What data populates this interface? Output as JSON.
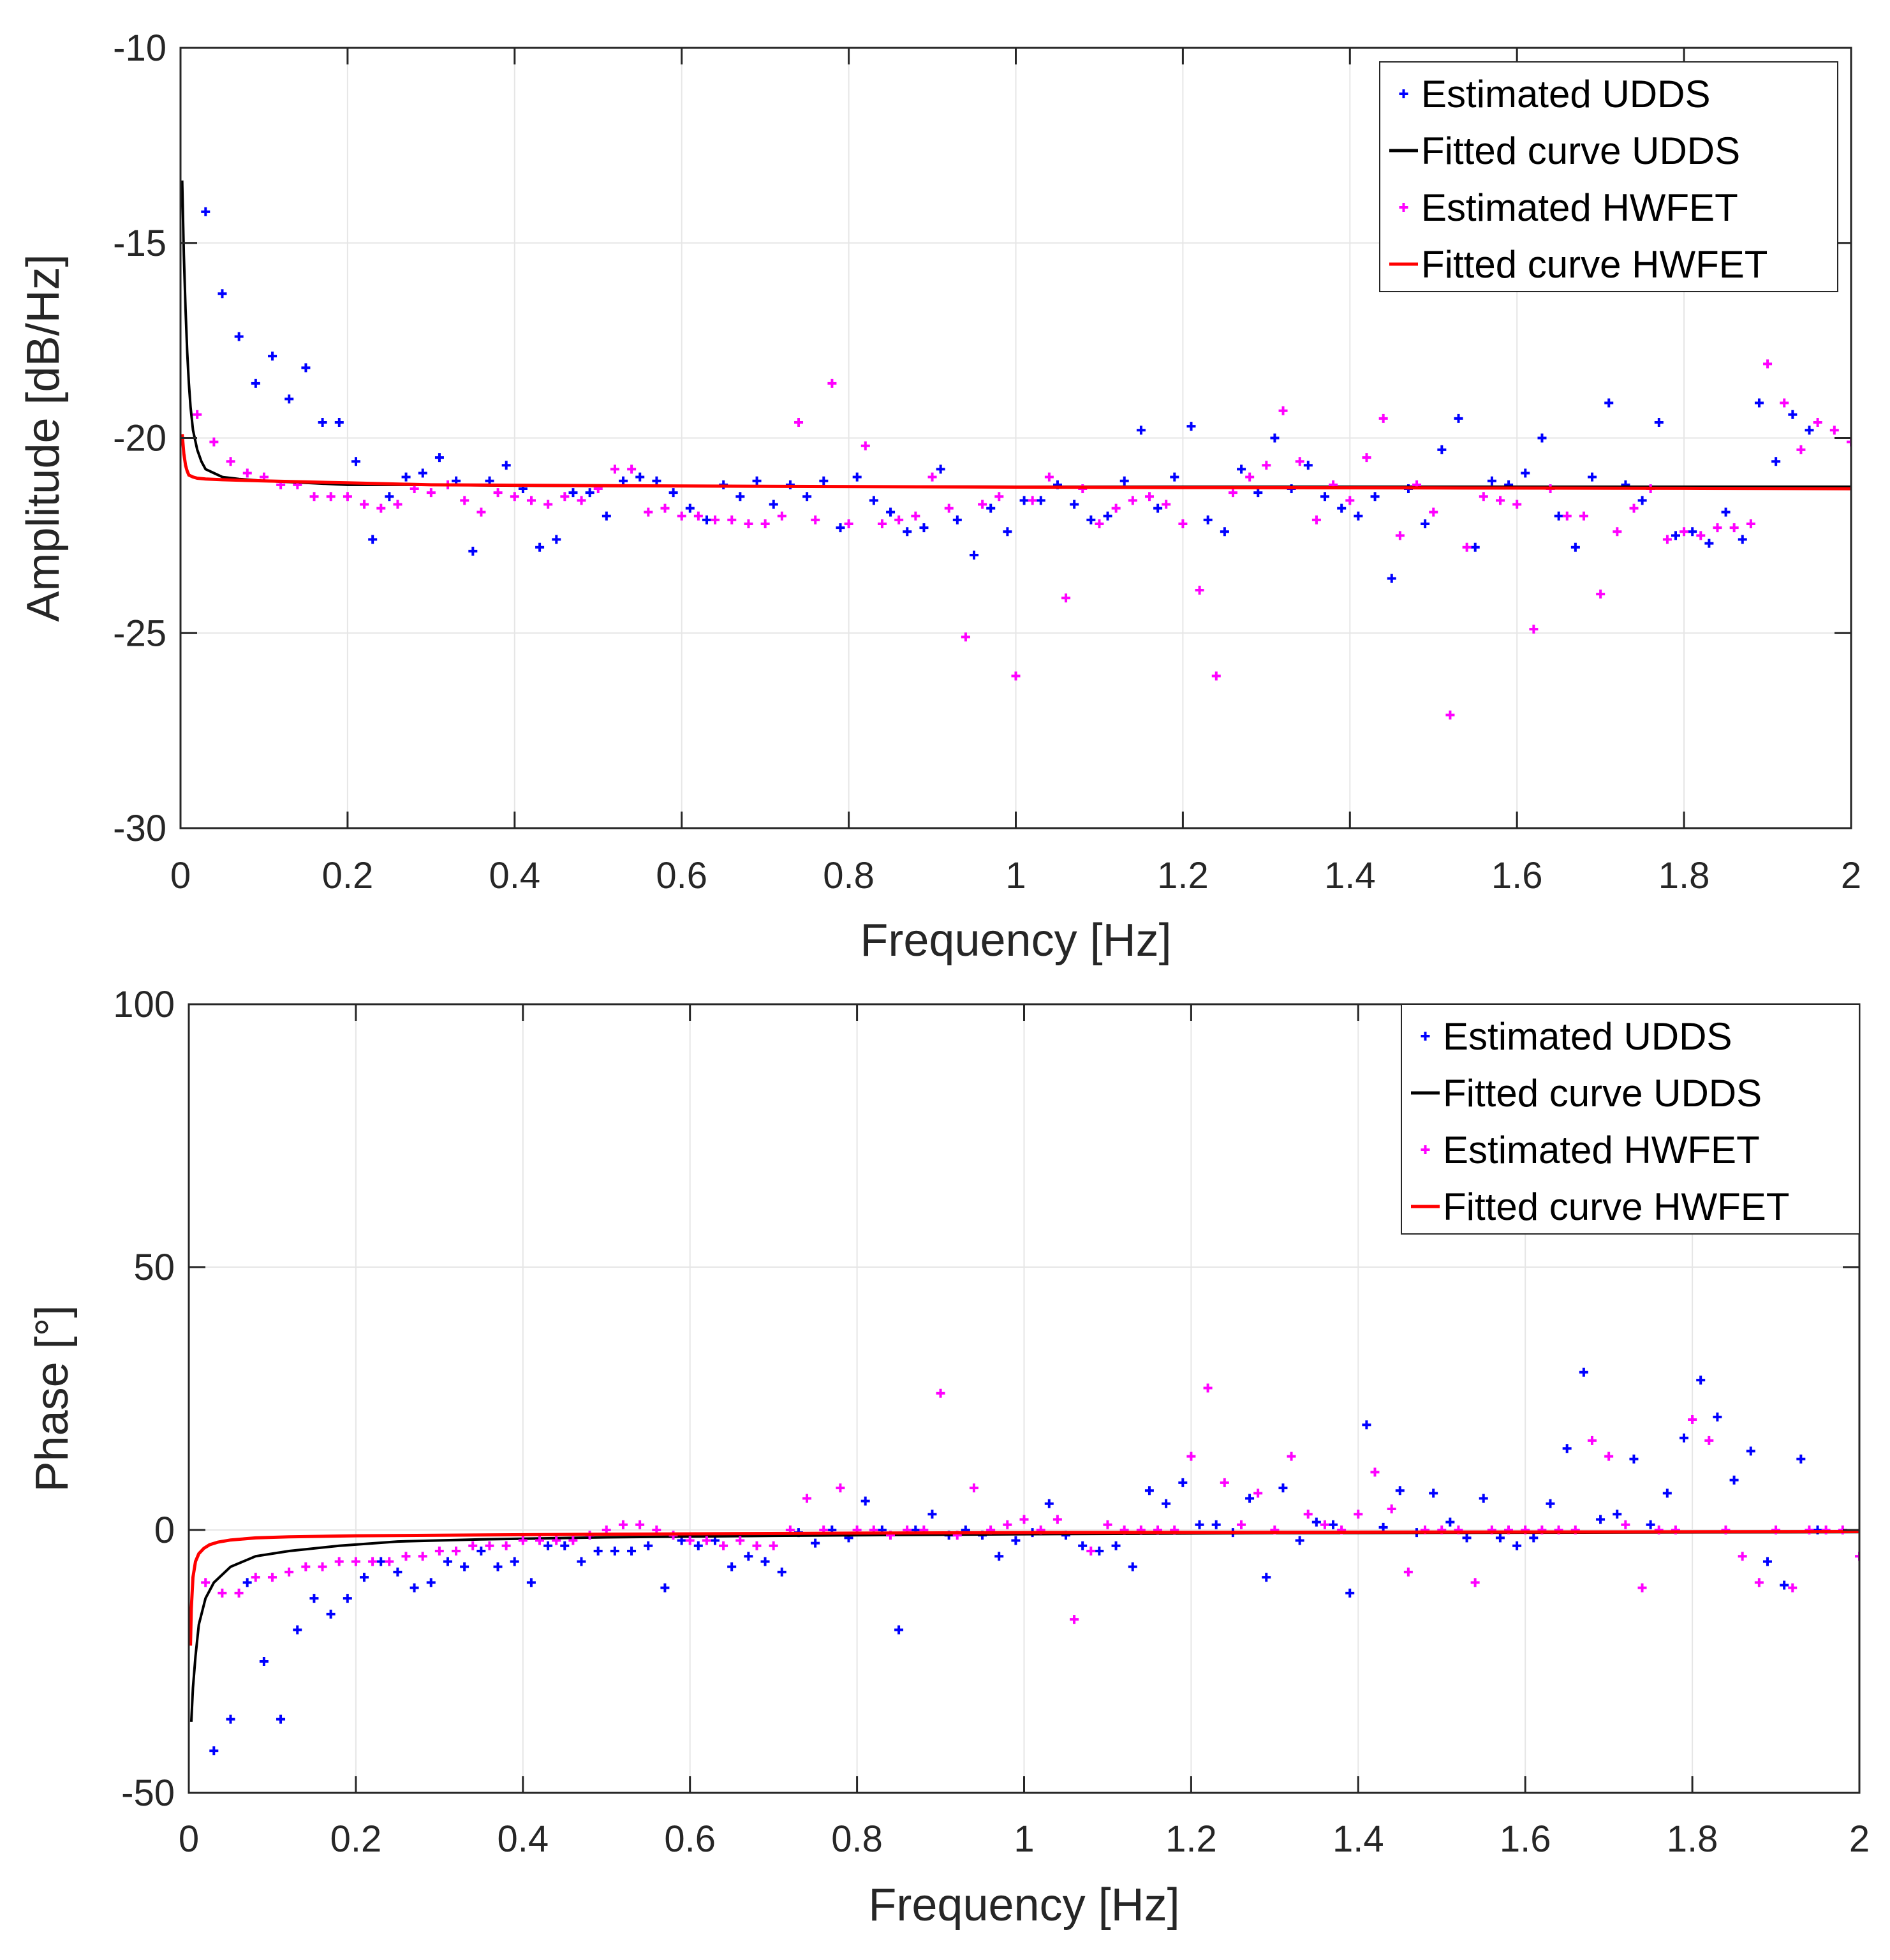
{
  "chart_data": [
    {
      "type": "scatter",
      "name": "amplitude",
      "xlabel": "Frequency [Hz]",
      "ylabel": "Amplitude [dB/Hz]",
      "xlim": [
        0,
        2
      ],
      "ylim": [
        -30,
        -10
      ],
      "xticks": [
        0,
        0.2,
        0.4,
        0.6,
        0.8,
        1,
        1.2,
        1.4,
        1.6,
        1.8,
        2
      ],
      "xtick_labels": [
        "0",
        "0.2",
        "0.4",
        "0.6",
        "0.8",
        "1",
        "1.2",
        "1.4",
        "1.6",
        "1.8",
        "2"
      ],
      "yticks": [
        -30,
        -25,
        -20,
        -15,
        -10
      ],
      "ytick_labels": [
        "-30",
        "-25",
        "-20",
        "-15",
        "-10"
      ],
      "grid": true,
      "legend_position": "top-right",
      "series": [
        {
          "name": "Estimated UDDS",
          "kind": "points",
          "color": "#0000ff",
          "x": [
            0.03,
            0.05,
            0.07,
            0.09,
            0.11,
            0.13,
            0.15,
            0.17,
            0.19,
            0.21,
            0.23,
            0.25,
            0.27,
            0.29,
            0.31,
            0.33,
            0.35,
            0.37,
            0.39,
            0.41,
            0.43,
            0.45,
            0.47,
            0.49,
            0.51,
            0.53,
            0.55,
            0.57,
            0.59,
            0.61,
            0.63,
            0.65,
            0.67,
            0.69,
            0.71,
            0.73,
            0.75,
            0.77,
            0.79,
            0.81,
            0.83,
            0.85,
            0.87,
            0.89,
            0.91,
            0.93,
            0.95,
            0.97,
            0.99,
            1.01,
            1.03,
            1.05,
            1.07,
            1.09,
            1.11,
            1.13,
            1.15,
            1.17,
            1.19,
            1.21,
            1.23,
            1.25,
            1.27,
            1.29,
            1.31,
            1.33,
            1.35,
            1.37,
            1.39,
            1.41,
            1.43,
            1.45,
            1.47,
            1.49,
            1.51,
            1.53,
            1.55,
            1.57,
            1.59,
            1.61,
            1.63,
            1.65,
            1.67,
            1.69,
            1.71,
            1.73,
            1.75,
            1.77,
            1.79,
            1.81,
            1.83,
            1.85,
            1.87,
            1.89,
            1.91,
            1.93,
            1.95
          ],
          "y": [
            -14.2,
            -16.3,
            -17.4,
            -18.6,
            -17.9,
            -19.0,
            -18.2,
            -19.6,
            -19.6,
            -20.6,
            -22.6,
            -21.5,
            -21.0,
            -20.9,
            -20.5,
            -21.1,
            -22.9,
            -21.1,
            -20.7,
            -21.3,
            -22.8,
            -22.6,
            -21.4,
            -21.4,
            -22.0,
            -21.1,
            -21.0,
            -21.1,
            -21.4,
            -21.8,
            -22.1,
            -21.2,
            -21.5,
            -21.1,
            -21.7,
            -21.2,
            -21.5,
            -21.1,
            -22.3,
            -21.0,
            -21.6,
            -21.9,
            -22.4,
            -22.3,
            -20.8,
            -22.1,
            -23.0,
            -21.8,
            -22.4,
            -21.6,
            -21.6,
            -21.2,
            -21.7,
            -22.1,
            -22.0,
            -21.1,
            -19.8,
            -21.8,
            -21.0,
            -19.7,
            -22.1,
            -22.4,
            -20.8,
            -21.4,
            -20.0,
            -21.3,
            -20.7,
            -21.5,
            -21.8,
            -22.0,
            -21.5,
            -23.6,
            -21.3,
            -22.2,
            -20.3,
            -19.5,
            -22.8,
            -21.1,
            -21.2,
            -20.9,
            -20.0,
            -22.0,
            -22.8,
            -21.0,
            -19.1,
            -21.2,
            -21.6,
            -19.6,
            -22.5,
            -22.4,
            -22.7,
            -21.9,
            -22.6,
            -19.1,
            -20.6,
            -19.4,
            -19.8
          ]
        },
        {
          "name": "Fitted curve UDDS",
          "kind": "curve",
          "color": "#000000",
          "x": [
            0.002,
            0.004,
            0.006,
            0.008,
            0.01,
            0.012,
            0.015,
            0.02,
            0.025,
            0.03,
            0.04,
            0.05,
            0.07,
            0.1,
            0.15,
            0.2,
            0.3,
            0.4,
            0.5,
            0.7,
            1.0,
            1.2,
            1.5,
            1.8,
            2.0
          ],
          "y": [
            -13.4,
            -15.3,
            -16.7,
            -17.8,
            -18.6,
            -19.2,
            -19.8,
            -20.3,
            -20.6,
            -20.8,
            -20.9,
            -21.0,
            -21.05,
            -21.1,
            -21.15,
            -21.2,
            -21.2,
            -21.22,
            -21.23,
            -21.24,
            -21.25,
            -21.25,
            -21.25,
            -21.25,
            -21.25
          ]
        },
        {
          "name": "Estimated HWFET",
          "kind": "points",
          "color": "#ff00ff",
          "x": [
            0.02,
            0.04,
            0.06,
            0.08,
            0.1,
            0.12,
            0.14,
            0.16,
            0.18,
            0.2,
            0.22,
            0.24,
            0.26,
            0.28,
            0.3,
            0.32,
            0.34,
            0.36,
            0.38,
            0.4,
            0.42,
            0.44,
            0.46,
            0.48,
            0.5,
            0.52,
            0.54,
            0.56,
            0.58,
            0.6,
            0.62,
            0.64,
            0.66,
            0.68,
            0.7,
            0.72,
            0.74,
            0.76,
            0.78,
            0.8,
            0.82,
            0.84,
            0.86,
            0.88,
            0.9,
            0.92,
            0.94,
            0.96,
            0.98,
            1.0,
            1.02,
            1.04,
            1.06,
            1.08,
            1.1,
            1.12,
            1.14,
            1.16,
            1.18,
            1.2,
            1.22,
            1.24,
            1.26,
            1.28,
            1.3,
            1.32,
            1.34,
            1.36,
            1.38,
            1.4,
            1.42,
            1.44,
            1.46,
            1.48,
            1.5,
            1.52,
            1.54,
            1.56,
            1.58,
            1.6,
            1.62,
            1.64,
            1.66,
            1.68,
            1.7,
            1.72,
            1.74,
            1.76,
            1.78,
            1.8,
            1.82,
            1.84,
            1.86,
            1.88,
            1.9,
            1.92,
            1.94,
            1.96,
            1.98,
            2.0
          ],
          "y": [
            -19.4,
            -20.1,
            -20.6,
            -20.9,
            -21.0,
            -21.2,
            -21.2,
            -21.5,
            -21.5,
            -21.5,
            -21.7,
            -21.8,
            -21.7,
            -21.3,
            -21.4,
            -21.2,
            -21.6,
            -21.9,
            -21.4,
            -21.5,
            -21.6,
            -21.7,
            -21.5,
            -21.6,
            -21.3,
            -20.8,
            -20.8,
            -21.9,
            -21.8,
            -22.0,
            -22.0,
            -22.1,
            -22.1,
            -22.2,
            -22.2,
            -22.0,
            -19.6,
            -22.1,
            -18.6,
            -22.2,
            -20.2,
            -22.2,
            -22.1,
            -22.0,
            -21.0,
            -21.8,
            -25.1,
            -21.7,
            -21.5,
            -26.1,
            -21.6,
            -21.0,
            -24.1,
            -21.3,
            -22.2,
            -21.8,
            -21.6,
            -21.5,
            -21.7,
            -22.2,
            -23.9,
            -26.1,
            -21.4,
            -21.0,
            -20.7,
            -19.3,
            -20.6,
            -22.1,
            -21.2,
            -21.6,
            -20.5,
            -19.5,
            -22.5,
            -21.2,
            -21.9,
            -27.1,
            -22.8,
            -21.5,
            -21.6,
            -21.7,
            -24.9,
            -21.3,
            -22.0,
            -22.0,
            -24.0,
            -22.4,
            -21.8,
            -21.3,
            -22.6,
            -22.4,
            -22.5,
            -22.3,
            -22.3,
            -22.2,
            -18.1,
            -19.1,
            -20.3,
            -19.6,
            -19.8,
            -20.1
          ]
        },
        {
          "name": "Fitted curve HWFET",
          "kind": "curve",
          "color": "#ff0000",
          "x": [
            0.002,
            0.004,
            0.006,
            0.008,
            0.01,
            0.015,
            0.02,
            0.03,
            0.05,
            0.1,
            0.2,
            0.3,
            0.5,
            0.7,
            1.0,
            1.2,
            1.5,
            1.8,
            2.0
          ],
          "y": [
            -19.9,
            -20.4,
            -20.7,
            -20.85,
            -20.95,
            -21.0,
            -21.03,
            -21.05,
            -21.07,
            -21.1,
            -21.15,
            -21.2,
            -21.22,
            -21.24,
            -21.26,
            -21.27,
            -21.28,
            -21.29,
            -21.3
          ]
        }
      ]
    },
    {
      "type": "scatter",
      "name": "phase",
      "xlabel": "Frequency [Hz]",
      "ylabel": "Phase [°]",
      "xlim": [
        0,
        2
      ],
      "ylim": [
        -50,
        100
      ],
      "xticks": [
        0,
        0.2,
        0.4,
        0.6,
        0.8,
        1,
        1.2,
        1.4,
        1.6,
        1.8,
        2
      ],
      "xtick_labels": [
        "0",
        "0.2",
        "0.4",
        "0.6",
        "0.8",
        "1",
        "1.2",
        "1.4",
        "1.6",
        "1.8",
        "2"
      ],
      "yticks": [
        -50,
        0,
        50,
        100
      ],
      "ytick_labels": [
        "-50",
        "0",
        "50",
        "100"
      ],
      "grid": true,
      "legend_position": "top-right",
      "series": [
        {
          "name": "Estimated UDDS",
          "kind": "points",
          "color": "#0000ff",
          "x": [
            0.03,
            0.05,
            0.07,
            0.09,
            0.11,
            0.13,
            0.15,
            0.17,
            0.19,
            0.21,
            0.23,
            0.25,
            0.27,
            0.29,
            0.31,
            0.33,
            0.35,
            0.37,
            0.39,
            0.41,
            0.43,
            0.45,
            0.47,
            0.49,
            0.51,
            0.53,
            0.55,
            0.57,
            0.59,
            0.61,
            0.63,
            0.65,
            0.67,
            0.69,
            0.71,
            0.73,
            0.75,
            0.77,
            0.79,
            0.81,
            0.83,
            0.85,
            0.87,
            0.89,
            0.91,
            0.93,
            0.95,
            0.97,
            0.99,
            1.01,
            1.03,
            1.05,
            1.07,
            1.09,
            1.11,
            1.13,
            1.15,
            1.17,
            1.19,
            1.21,
            1.23,
            1.25,
            1.27,
            1.29,
            1.31,
            1.33,
            1.35,
            1.37,
            1.39,
            1.41,
            1.43,
            1.45,
            1.47,
            1.49,
            1.51,
            1.53,
            1.55,
            1.57,
            1.59,
            1.61,
            1.63,
            1.65,
            1.67,
            1.69,
            1.71,
            1.73,
            1.75,
            1.77,
            1.79,
            1.81,
            1.83,
            1.85,
            1.87,
            1.89,
            1.91,
            1.93,
            1.95
          ],
          "y": [
            -42,
            -36,
            -10,
            -25,
            -36,
            -19,
            -13,
            -16,
            -13,
            -9,
            -6,
            -8,
            -11,
            -10,
            -6,
            -7,
            -4,
            -7,
            -6,
            -10,
            -3,
            -3,
            -6,
            -4,
            -4,
            -4,
            -3,
            -11,
            -2,
            -3,
            -2,
            -7,
            -5,
            -6,
            -8,
            -0.5,
            -2.5,
            0,
            -1.5,
            5.5,
            0,
            -19,
            0,
            3,
            -1,
            0,
            -1,
            -5,
            -2,
            -0.5,
            5,
            -1,
            -3,
            -4,
            -3,
            -7,
            7.5,
            5,
            9,
            1,
            1,
            -0.5,
            6,
            -9,
            8,
            -2,
            1.5,
            1,
            -12,
            20,
            0.5,
            7.5,
            -0.5,
            7,
            1.5,
            -1.5,
            6,
            -1.5,
            -3,
            -1.5,
            5,
            15.5,
            30,
            2,
            3,
            13.5,
            1,
            7,
            17.5,
            28.5,
            21.5,
            9.5,
            15,
            -6,
            -10.5,
            13.5,
            0
          ]
        },
        {
          "name": "Fitted curve UDDS",
          "kind": "curve",
          "color": "#000000",
          "x": [
            0.003,
            0.005,
            0.008,
            0.012,
            0.02,
            0.03,
            0.05,
            0.08,
            0.12,
            0.18,
            0.25,
            0.35,
            0.5,
            0.7,
            1.0,
            1.3,
            1.6,
            2.0
          ],
          "y": [
            -36.5,
            -30,
            -24,
            -18,
            -13,
            -10,
            -7,
            -5,
            -4,
            -3,
            -2.2,
            -1.8,
            -1.4,
            -1.1,
            -0.8,
            -0.6,
            -0.5,
            -0.4
          ]
        },
        {
          "name": "Estimated HWFET",
          "kind": "points",
          "color": "#ff00ff",
          "x": [
            0.02,
            0.04,
            0.06,
            0.08,
            0.1,
            0.12,
            0.14,
            0.16,
            0.18,
            0.2,
            0.22,
            0.24,
            0.26,
            0.28,
            0.3,
            0.32,
            0.34,
            0.36,
            0.38,
            0.4,
            0.42,
            0.44,
            0.46,
            0.48,
            0.5,
            0.52,
            0.54,
            0.56,
            0.58,
            0.6,
            0.62,
            0.64,
            0.66,
            0.68,
            0.7,
            0.72,
            0.74,
            0.76,
            0.78,
            0.8,
            0.82,
            0.84,
            0.86,
            0.88,
            0.9,
            0.92,
            0.94,
            0.96,
            0.98,
            1.0,
            1.02,
            1.04,
            1.06,
            1.08,
            1.1,
            1.12,
            1.14,
            1.16,
            1.18,
            1.2,
            1.22,
            1.24,
            1.26,
            1.28,
            1.3,
            1.32,
            1.34,
            1.36,
            1.38,
            1.4,
            1.42,
            1.44,
            1.46,
            1.48,
            1.5,
            1.52,
            1.54,
            1.56,
            1.58,
            1.6,
            1.62,
            1.64,
            1.66,
            1.68,
            1.7,
            1.72,
            1.74,
            1.76,
            1.78,
            1.8,
            1.82,
            1.84,
            1.86,
            1.88,
            1.9,
            1.92,
            1.94,
            1.96,
            1.98,
            2.0
          ],
          "y": [
            -10,
            -12,
            -12,
            -9,
            -9,
            -8,
            -7,
            -7,
            -6,
            -6,
            -6,
            -6,
            -5,
            -5,
            -4,
            -4,
            -3,
            -3,
            -3,
            -2,
            -2,
            -2,
            -2,
            -1,
            0,
            1,
            1,
            0,
            -1,
            -2,
            -2,
            -3,
            -2,
            -3,
            -3,
            0,
            6,
            0,
            8,
            0,
            0,
            -1,
            0,
            0,
            26,
            -1,
            8,
            0,
            1,
            2,
            0,
            2,
            -17,
            -4,
            1,
            0,
            0,
            0,
            0,
            14,
            27,
            9,
            1,
            7,
            0,
            14,
            3,
            1,
            0,
            3,
            11,
            4,
            -8,
            0,
            0,
            0,
            -10,
            0,
            0,
            0,
            0,
            0,
            0,
            17,
            14,
            1,
            -11,
            0,
            0,
            21,
            17,
            0,
            -5,
            -10,
            0,
            -11,
            0,
            0,
            0,
            -5
          ]
        },
        {
          "name": "Fitted curve HWFET",
          "kind": "curve",
          "color": "#ff0000",
          "x": [
            0.002,
            0.003,
            0.005,
            0.008,
            0.012,
            0.018,
            0.025,
            0.035,
            0.05,
            0.08,
            0.12,
            0.2,
            0.3,
            0.5,
            0.8,
            1.0,
            1.5,
            2.0
          ],
          "y": [
            -22,
            -15,
            -9,
            -6,
            -4.5,
            -3.5,
            -2.8,
            -2.3,
            -1.9,
            -1.5,
            -1.3,
            -1.1,
            -1.0,
            -0.8,
            -0.6,
            -0.5,
            -0.4,
            -0.3
          ]
        }
      ]
    }
  ]
}
